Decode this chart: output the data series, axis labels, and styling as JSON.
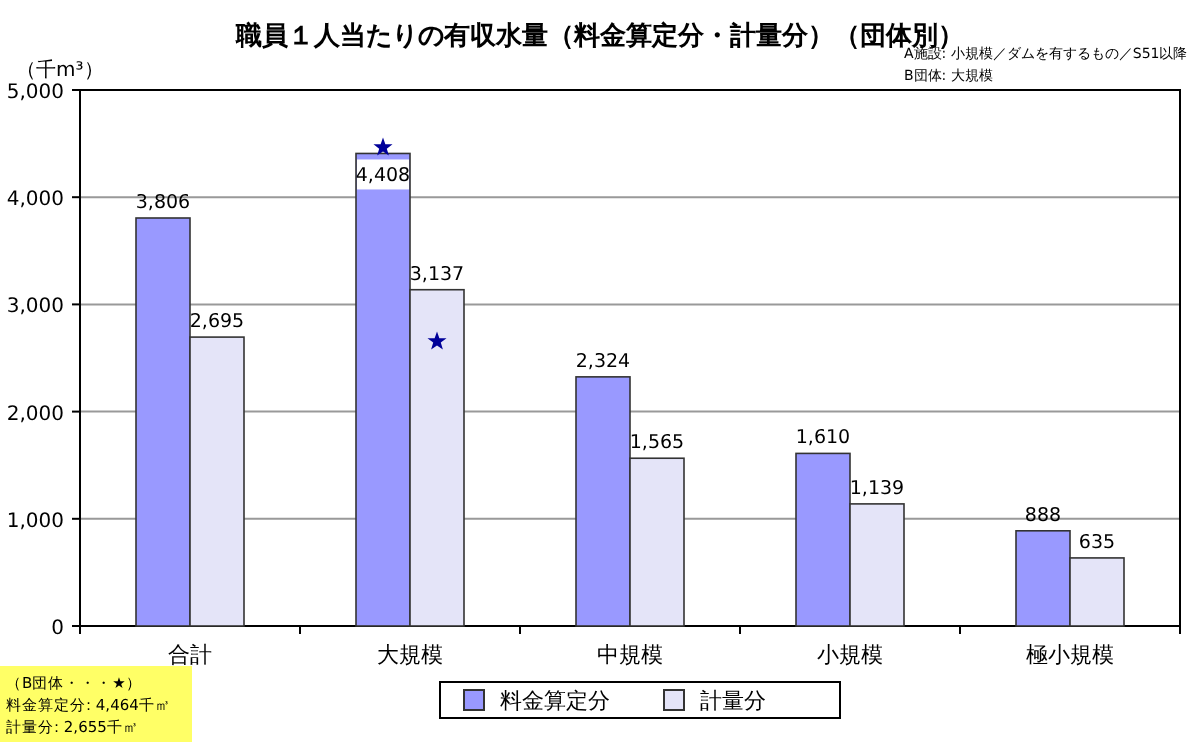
{
  "chart_data": {
    "type": "bar",
    "title": "職員１人当たりの有収水量（料金算定分・計量分）（団体別）",
    "ylabel": "（千m³）",
    "categories": [
      "合計",
      "大規模",
      "中規模",
      "小規模",
      "極小規模"
    ],
    "series": [
      {
        "name": "料金算定分",
        "color": "#9999ff",
        "values": [
          3806,
          4408,
          2324,
          1610,
          888
        ],
        "value_labels": [
          "3,806",
          "4,408",
          "2,324",
          "1,610",
          "888"
        ]
      },
      {
        "name": "計量分",
        "color": "#e4e4f8",
        "values": [
          2695,
          3137,
          1565,
          1139,
          635
        ],
        "value_labels": [
          "2,695",
          "3,137",
          "1,565",
          "1,139",
          "635"
        ]
      },
      {
        "type": "scatter",
        "color": "#000099",
        "x": [
          "大規模"
        ],
        "values": [
          4464
        ],
        "marker": "star"
      },
      {
        "type": "scatter",
        "color": "#000099",
        "x": [
          "大規模"
        ],
        "values": [
          2655
        ],
        "marker": "star"
      }
    ],
    "ylim": [
      0,
      5000
    ],
    "yticks": [
      0,
      {
        "value": 1000,
        "label": "1,000"
      },
      {
        "value": 2000,
        "label": "2,000"
      },
      {
        "value": 3000,
        "label": "3,000"
      },
      {
        "value": 4000,
        "label": "4,000"
      },
      {
        "value": 5000,
        "label": "5,000"
      }
    ],
    "grid": "y",
    "legend": "bottom",
    "annotations": [
      "A施設: 小規模／ダムを有するもの／S51以降",
      "B団体: 大規模",
      "（B団体・・・★）",
      "料金算定分: 4,464千㎥",
      "計量分: 2,655千㎥"
    ]
  }
}
